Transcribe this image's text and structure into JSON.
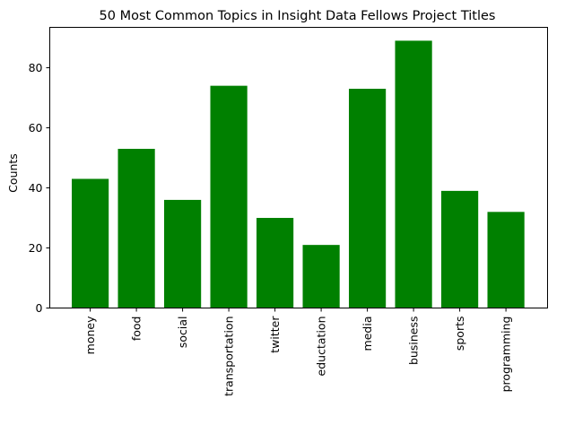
{
  "chart_data": {
    "type": "bar",
    "title": "50 Most Common Topics in Insight Data Fellows Project Titles",
    "xlabel": "",
    "ylabel": "Counts",
    "categories": [
      "money",
      "food",
      "social",
      "transportation",
      "twitter",
      "eductation",
      "media",
      "business",
      "sports",
      "programming"
    ],
    "values": [
      43,
      53,
      36,
      74,
      30,
      21,
      73,
      89,
      39,
      32
    ],
    "ylim": [
      0,
      93.45
    ],
    "yticks": [
      0,
      20,
      40,
      60,
      80
    ],
    "bar_color": "#008000",
    "grid": false,
    "legend": "none"
  }
}
